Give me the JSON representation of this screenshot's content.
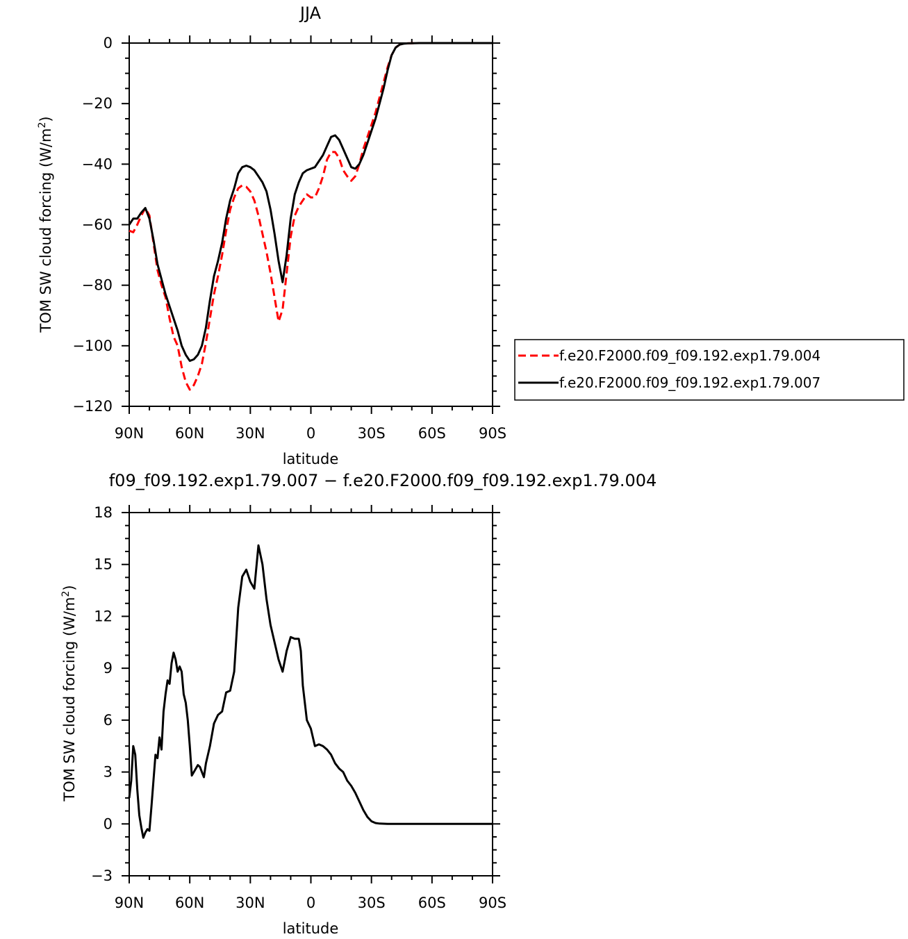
{
  "chart_data": [
    {
      "type": "line",
      "title": "JJA",
      "xlabel": "latitude",
      "ylabel_main": "TOM SW cloud forcing (W/m",
      "ylabel_sup": "2",
      "ylabel_close": ")",
      "xlim": [
        90,
        -90
      ],
      "ylim": [
        -120,
        0
      ],
      "xticks": [
        90,
        60,
        30,
        0,
        -30,
        -60,
        -90
      ],
      "xtick_labels": [
        "90N",
        "60N",
        "30N",
        "0",
        "30S",
        "60S",
        "90S"
      ],
      "yticks": [
        0,
        -20,
        -40,
        -60,
        -80,
        -100,
        -120
      ],
      "ytick_labels": [
        "0",
        "−20",
        "−40",
        "−60",
        "−80",
        "−100",
        "−120"
      ],
      "grid": false,
      "legend_position": "right",
      "series": [
        {
          "name": "f.e20.F2000.f09_f09.192.exp1.79.004",
          "color": "#ff0000",
          "dash": "dashed",
          "x": [
            90,
            88,
            86,
            84,
            82,
            80,
            78,
            76,
            74,
            72,
            70,
            68,
            66,
            64,
            62,
            60,
            58,
            56,
            54,
            52,
            50,
            48,
            46,
            44,
            42,
            40,
            38,
            36,
            34,
            32,
            30,
            28,
            26,
            24,
            22,
            20,
            18,
            16,
            14,
            12,
            10,
            8,
            6,
            4,
            2,
            0,
            -2,
            -4,
            -6,
            -8,
            -10,
            -12,
            -14,
            -16,
            -18,
            -20,
            -22,
            -24,
            -26,
            -28,
            -30,
            -32,
            -34,
            -36,
            -38,
            -40,
            -42,
            -44,
            -46,
            -48,
            -50,
            -52,
            -54,
            -56,
            -58,
            -60,
            -62,
            -64,
            -66,
            -68,
            -70,
            -74,
            -78,
            -82,
            -86,
            -90
          ],
          "y": [
            -62,
            -62.5,
            -60,
            -57,
            -54.5,
            -57,
            -66,
            -75,
            -80,
            -84,
            -91,
            -97,
            -100,
            -107,
            -112,
            -114.5,
            -113,
            -110,
            -106,
            -99,
            -91,
            -83,
            -77,
            -70,
            -62,
            -55,
            -51,
            -48,
            -47,
            -47.5,
            -49,
            -52,
            -57,
            -63,
            -69,
            -76,
            -84,
            -92,
            -88,
            -76,
            -64,
            -57,
            -54,
            -52,
            -50,
            -51,
            -51,
            -48,
            -44,
            -38.5,
            -36,
            -36,
            -38,
            -42,
            -44,
            -45.5,
            -44,
            -40,
            -35,
            -31,
            -27,
            -23,
            -18,
            -13,
            -8,
            -4,
            -1.5,
            -0.5,
            -0.2,
            -0.1,
            -0.05,
            -0.02,
            -0.01,
            -0.01,
            0,
            0,
            0,
            0,
            0,
            0,
            0,
            0,
            0,
            0,
            0,
            0
          ]
        },
        {
          "name": "f.e20.F2000.f09_f09.192.exp1.79.007",
          "color": "#000000",
          "dash": "solid",
          "x": [
            90,
            88,
            86,
            84,
            82,
            80,
            78,
            76,
            74,
            72,
            70,
            68,
            66,
            64,
            62,
            60,
            58,
            56,
            54,
            52,
            50,
            48,
            46,
            44,
            42,
            40,
            38,
            36,
            34,
            32,
            30,
            28,
            26,
            24,
            22,
            20,
            18,
            16,
            14,
            12,
            10,
            8,
            6,
            4,
            2,
            0,
            -2,
            -4,
            -6,
            -8,
            -10,
            -12,
            -14,
            -16,
            -18,
            -20,
            -22,
            -24,
            -26,
            -28,
            -30,
            -32,
            -34,
            -36,
            -38,
            -40,
            -42,
            -44,
            -46,
            -48,
            -50,
            -52,
            -54,
            -56,
            -58,
            -60,
            -62,
            -64,
            -66,
            -68,
            -70,
            -74,
            -78,
            -82,
            -86,
            -90
          ],
          "y": [
            -60,
            -58,
            -58,
            -56,
            -54.5,
            -58,
            -65,
            -73,
            -78,
            -83,
            -87,
            -91,
            -95,
            -100,
            -103,
            -105,
            -104.5,
            -103,
            -100,
            -94,
            -85,
            -77,
            -72,
            -66,
            -58,
            -52,
            -48,
            -43,
            -41,
            -40.5,
            -41,
            -42,
            -44,
            -46,
            -49,
            -55,
            -63,
            -72,
            -79,
            -70,
            -58,
            -50,
            -46,
            -43,
            -42,
            -41.5,
            -41,
            -39,
            -37,
            -34,
            -31,
            -30.5,
            -32,
            -35,
            -38,
            -41,
            -41.5,
            -40,
            -37,
            -33,
            -29,
            -25,
            -20,
            -15,
            -9,
            -4,
            -1.5,
            -0.5,
            -0.2,
            -0.1,
            -0.05,
            -0.02,
            -0.01,
            -0.01,
            0,
            0,
            0,
            0,
            0,
            0,
            0,
            0,
            0,
            0,
            0,
            0
          ]
        }
      ]
    },
    {
      "type": "line",
      "title": "f09_f09.192.exp1.79.007 − f.e20.F2000.f09_f09.192.exp1.79.004",
      "xlabel": "latitude",
      "ylabel_main": "TOM SW cloud forcing (W/m",
      "ylabel_sup": "2",
      "ylabel_close": ")",
      "xlim": [
        90,
        -90
      ],
      "ylim": [
        -3,
        18
      ],
      "xticks": [
        90,
        60,
        30,
        0,
        -30,
        -60,
        -90
      ],
      "xtick_labels": [
        "90N",
        "60N",
        "30N",
        "0",
        "30S",
        "60S",
        "90S"
      ],
      "yticks": [
        18,
        15,
        12,
        9,
        6,
        3,
        0,
        -3
      ],
      "ytick_labels": [
        "18",
        "15",
        "12",
        "9",
        "6",
        "3",
        "0",
        "−3"
      ],
      "grid": false,
      "series": [
        {
          "color": "#000000",
          "dash": "solid",
          "x": [
            90,
            89,
            88,
            87,
            86,
            85,
            84,
            83,
            82,
            81,
            80,
            79,
            78,
            77,
            76,
            75,
            74,
            73,
            72,
            71,
            70,
            69,
            68,
            67,
            66,
            65,
            64,
            63,
            62,
            61,
            60,
            59,
            58,
            57,
            56,
            55,
            54,
            53,
            52,
            51,
            50,
            48,
            46,
            44,
            42,
            40,
            38,
            36,
            34,
            32,
            30,
            28,
            26,
            24,
            22,
            20,
            18,
            16,
            14,
            12,
            10,
            8,
            6,
            5,
            4,
            2,
            0,
            -2,
            -4,
            -6,
            -8,
            -10,
            -12,
            -14,
            -16,
            -18,
            -20,
            -22,
            -24,
            -26,
            -28,
            -30,
            -32,
            -34,
            -36,
            -38,
            -40,
            -42,
            -44,
            -46,
            -48,
            -50,
            -52,
            -54,
            -56,
            -58,
            -60,
            -62,
            -64,
            -66,
            -68,
            -70,
            -74,
            -78,
            -82,
            -86,
            -90
          ],
          "y": [
            1.5,
            2.5,
            4.5,
            4,
            2,
            0.5,
            -0.2,
            -0.8,
            -0.5,
            -0.3,
            -0.4,
            1,
            2.5,
            4,
            3.8,
            5,
            4.3,
            6.5,
            7.5,
            8.3,
            8.1,
            9.3,
            9.9,
            9.5,
            8.8,
            9.1,
            8.8,
            7.5,
            7,
            6,
            4.5,
            2.8,
            3,
            3.2,
            3.4,
            3.3,
            3,
            2.7,
            3.5,
            4,
            4.5,
            5.8,
            6.3,
            6.5,
            7.6,
            7.7,
            8.8,
            12.5,
            14.3,
            14.7,
            14,
            13.6,
            16.1,
            15,
            13,
            11.5,
            10.5,
            9.5,
            8.8,
            10,
            10.8,
            10.7,
            10.7,
            10,
            8,
            6,
            5.5,
            4.5,
            4.6,
            4.5,
            4.3,
            4,
            3.5,
            3.2,
            3,
            2.5,
            2.2,
            1.8,
            1.3,
            0.8,
            0.4,
            0.15,
            0.05,
            0.02,
            0.01,
            0,
            0,
            0,
            0,
            0,
            0,
            0,
            0,
            0,
            0,
            0,
            0,
            0,
            0,
            0,
            0,
            0,
            0,
            0,
            0,
            0,
            0
          ]
        }
      ]
    }
  ]
}
